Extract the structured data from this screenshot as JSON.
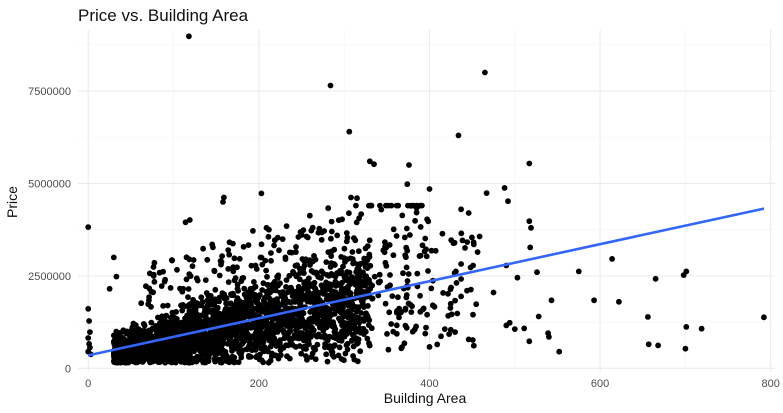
{
  "chart_data": {
    "type": "scatter",
    "title": "Price vs. Building Area",
    "xlabel": "Building Area",
    "ylabel": "Price",
    "xlim": [
      -12,
      805
    ],
    "ylim": [
      -100000,
      9150000
    ],
    "x_ticks": [
      0,
      200,
      400,
      600,
      800
    ],
    "y_ticks": [
      0,
      2500000,
      5000000,
      7500000
    ],
    "x_tick_labels": [
      "0",
      "200",
      "400",
      "600",
      "800"
    ],
    "y_tick_labels": [
      "0",
      "2500000",
      "5000000",
      "7500000"
    ],
    "grid": true,
    "legend": "none",
    "colors": {
      "points": "#000000",
      "fit_line": "#3366ff",
      "grid": "#ebebeb"
    },
    "fit_line": {
      "x": [
        0,
        792
      ],
      "y": [
        350000,
        4320000
      ]
    },
    "cluster": {
      "x_range": [
        30,
        330
      ],
      "note_count": 2600
    },
    "outliers": [
      {
        "x": 118,
        "y": 8980000
      },
      {
        "x": 465,
        "y": 8000000
      },
      {
        "x": 284,
        "y": 7650000
      },
      {
        "x": 306,
        "y": 6400000
      },
      {
        "x": 434,
        "y": 6300000
      },
      {
        "x": 330,
        "y": 5600000
      },
      {
        "x": 335,
        "y": 5520000
      },
      {
        "x": 517,
        "y": 5540000
      },
      {
        "x": 376,
        "y": 5500000
      },
      {
        "x": 374,
        "y": 4980000
      },
      {
        "x": 400,
        "y": 4850000
      },
      {
        "x": 488,
        "y": 4880000
      },
      {
        "x": 467,
        "y": 4740000
      },
      {
        "x": 203,
        "y": 4730000
      },
      {
        "x": 492,
        "y": 4520000
      },
      {
        "x": 308,
        "y": 4620000
      },
      {
        "x": 315,
        "y": 4600000
      },
      {
        "x": 159,
        "y": 4620000
      },
      {
        "x": 158,
        "y": 4500000
      },
      {
        "x": 0,
        "y": 3820000
      },
      {
        "x": 30,
        "y": 3000000
      },
      {
        "x": 114,
        "y": 3950000
      },
      {
        "x": 119,
        "y": 4010000
      },
      {
        "x": 517,
        "y": 3980000
      },
      {
        "x": 519,
        "y": 3800000
      },
      {
        "x": 518,
        "y": 3270000
      },
      {
        "x": 452,
        "y": 3350000
      },
      {
        "x": 437,
        "y": 4300000
      },
      {
        "x": 446,
        "y": 4200000
      },
      {
        "x": 575,
        "y": 2620000
      },
      {
        "x": 614,
        "y": 2960000
      },
      {
        "x": 701,
        "y": 2620000
      },
      {
        "x": 698,
        "y": 2520000
      },
      {
        "x": 665,
        "y": 2420000
      },
      {
        "x": 526,
        "y": 2600000
      },
      {
        "x": 503,
        "y": 2450000
      },
      {
        "x": 490,
        "y": 2780000
      },
      {
        "x": 475,
        "y": 2050000
      },
      {
        "x": 430,
        "y": 2550000
      },
      {
        "x": 593,
        "y": 1840000
      },
      {
        "x": 622,
        "y": 1800000
      },
      {
        "x": 543,
        "y": 1840000
      },
      {
        "x": 528,
        "y": 1400000
      },
      {
        "x": 494,
        "y": 1230000
      },
      {
        "x": 490,
        "y": 1160000
      },
      {
        "x": 500,
        "y": 1060000
      },
      {
        "x": 511,
        "y": 1080000
      },
      {
        "x": 539,
        "y": 950000
      },
      {
        "x": 540,
        "y": 850000
      },
      {
        "x": 517,
        "y": 730000
      },
      {
        "x": 552,
        "y": 450000
      },
      {
        "x": 657,
        "y": 650000
      },
      {
        "x": 668,
        "y": 620000
      },
      {
        "x": 700,
        "y": 530000
      },
      {
        "x": 701,
        "y": 1120000
      },
      {
        "x": 719,
        "y": 1070000
      },
      {
        "x": 656,
        "y": 1390000
      },
      {
        "x": 792,
        "y": 1380000
      },
      {
        "x": 452,
        "y": 610000
      },
      {
        "x": 400,
        "y": 580000
      },
      {
        "x": 418,
        "y": 1060000
      },
      {
        "x": 430,
        "y": 980000
      },
      {
        "x": 444,
        "y": 2100000
      },
      {
        "x": 0,
        "y": 1610000
      },
      {
        "x": 1,
        "y": 1280000
      },
      {
        "x": 2,
        "y": 980000
      },
      {
        "x": 0,
        "y": 820000
      },
      {
        "x": 1,
        "y": 660000
      },
      {
        "x": 2,
        "y": 560000
      },
      {
        "x": 0,
        "y": 450000
      },
      {
        "x": 3,
        "y": 380000
      },
      {
        "x": 171,
        "y": 160000
      },
      {
        "x": 155,
        "y": 160000
      },
      {
        "x": 42,
        "y": 250000
      },
      {
        "x": 55,
        "y": 300000
      },
      {
        "x": 25,
        "y": 2150000
      },
      {
        "x": 33,
        "y": 2480000
      }
    ]
  }
}
